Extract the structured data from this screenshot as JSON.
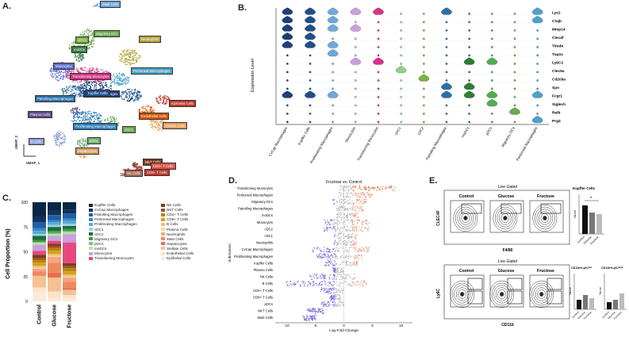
{
  "panels": {
    "a": "A.",
    "b": "B.",
    "c": "C.",
    "d": "D.",
    "e": "E."
  },
  "umap": {
    "axis_x": "UMAP_1",
    "axis_y": "UMAP_2",
    "clusters": [
      {
        "label": "Mast Cells",
        "color": "#6fa8dc"
      },
      {
        "label": "Migratory DCs",
        "color": "#6aa84f"
      },
      {
        "label": "Neutrophils",
        "color": "#b5a642"
      },
      {
        "label": "cDC2",
        "color": "#7cb342"
      },
      {
        "label": "moDCs",
        "color": "#3e7d4a"
      },
      {
        "label": "Transitioning Monocytes",
        "color": "#d63384"
      },
      {
        "label": "Peritoneal Macrophages",
        "color": "#4aa3c8"
      },
      {
        "label": "Monocytes",
        "color": "#5b6ec6"
      },
      {
        "label": "CvCap Macrophages",
        "color": "#1d3f7a"
      },
      {
        "label": "Patrolling Macrophages",
        "color": "#2f6fa8"
      },
      {
        "label": "Epithelial Cells",
        "color": "#c0392b"
      },
      {
        "label": "Plasma Cells",
        "color": "#5e4d8a"
      },
      {
        "label": "Endothelial Cells",
        "color": "#d35400"
      },
      {
        "label": "Proliferating Macrophages",
        "color": "#2c7fb8"
      },
      {
        "label": "cDC1",
        "color": "#6aa84f"
      },
      {
        "label": "Stellate Cells",
        "color": "#e6a15c"
      },
      {
        "label": "B Cells",
        "color": "#8e9fd6"
      },
      {
        "label": "pDCs",
        "color": "#6fb26f"
      },
      {
        "label": "Hepatocytes",
        "color": "#d9a066"
      },
      {
        "label": "NKT Cells",
        "color": "#7a3e1d"
      },
      {
        "label": "CD8+ T Cells",
        "color": "#c0392b"
      },
      {
        "label": "CD4+ T Cells",
        "color": "#d9534f"
      },
      {
        "label": "NK Cells",
        "color": "#a8705a"
      },
      {
        "label": "Kupffer Cells",
        "color": "#1f4e8c"
      }
    ]
  },
  "violin": {
    "ylabel": "Expression Level",
    "genes": [
      "Lyz2",
      "C1qb",
      "Mmp14",
      "Clec4f",
      "Timd4",
      "Top2a",
      "Ly6C2",
      "Clec9a",
      "Cd209a",
      "Spn",
      "Fcgr1",
      "Siglech",
      "Relb",
      "Prg4"
    ],
    "cell_types": [
      "CvCap Macrophages",
      "Kupffer Cells",
      "Proliferating Macrophages",
      "Monocytes",
      "Transitioning Monocytes",
      "cDC1",
      "cDC2",
      "Patrolling Macrophages",
      "moDCs",
      "pDCs",
      "Migratory DCs",
      "Peritoneal Macrophages"
    ],
    "colors": [
      "#1d3f7a",
      "#1f4e8c",
      "#6fa8dc",
      "#c9a0dc",
      "#d63384",
      "#8fcf8f",
      "#7cb342",
      "#2f6fa8",
      "#2e7d32",
      "#4caf50",
      "#6aa84f",
      "#4aa3c8"
    ]
  },
  "stacked": {
    "ylabel": "Cell Proportion (%)",
    "groups": [
      "Control",
      "Glucose",
      "Fructose"
    ],
    "ticks": [
      "0",
      "25",
      "50",
      "75",
      "100"
    ],
    "legend_col1": [
      "Kupffer Cells",
      "CvCap Macrophages",
      "Patrolling Macrophages",
      "Peritoneal Macrophages",
      "Proliferating Macrophages",
      "cDC1",
      "cDC2",
      "Migratory DCs",
      "pDCs",
      "moDCs",
      "Monocytes",
      "Transitioning Monocytes"
    ],
    "legend_col2": [
      "NK Cells",
      "NKT Cells",
      "CD4+ T Cells",
      "CD8+ T Cells",
      "B Cells",
      "Plasma Cells",
      "Neutrophils",
      "Mast Cells",
      "Hepatocytes",
      "Stellate Cells",
      "Endothelial Cells",
      "Epithelial Cells"
    ],
    "colors_col1": [
      "#0b2545",
      "#13315c",
      "#1d5fa6",
      "#3a87c8",
      "#5aa8d8",
      "#9fd1e8",
      "#1e6b3a",
      "#3f9a4a",
      "#7cc47c",
      "#b8e0a8",
      "#c9a0dc",
      "#e64980"
    ],
    "colors_col2": [
      "#7a3e1d",
      "#a0522d",
      "#b8860b",
      "#d4a017",
      "#e8c07a",
      "#f1d9a8",
      "#f4a582",
      "#f08a5d",
      "#e76f51",
      "#f4c095",
      "#fbe3c8",
      "#fde9d9"
    ]
  },
  "beeswarm": {
    "title": "Fructose vs. Control",
    "ylabel": "Subclusters",
    "xlabel": "Log Fold Change",
    "xticks": [
      "-10",
      "-5",
      "0",
      "5",
      "10"
    ],
    "rows": [
      "Transitioning Monocytes",
      "Peritoneal Macrophages",
      "Migratory DCs",
      "Patrolling Macrophages",
      "moDCs",
      "Monocytes",
      "cDC2",
      "cDC1",
      "Neutrophils",
      "CvCap Macrophages",
      "Proliferating Macrophages",
      "Kupffer Cells",
      "Plasma Cells",
      "NK Cells",
      "B Cells",
      "CD4+ T Cells",
      "CD8+ T Cells",
      "pDCs",
      "NKT Cells",
      "Mast Cells"
    ]
  },
  "flow": {
    "top_title": "Live Gated",
    "top_groups": [
      "Control",
      "Glucose",
      "Fructose"
    ],
    "top_ylabel": "CLEC4F",
    "top_xlabel": "F4/80",
    "kupffer_title": "Kupffer Cells",
    "bottom_title": "Live Gated",
    "bottom_groups": [
      "Control",
      "Glucose",
      "Fructose"
    ],
    "bottom_ylabel": "Ly6C",
    "bottom_xlabel": "CD11b",
    "bar_title_1": "CD11b+Ly6C",
    "bar_title_1_sup": "low",
    "bar_title_2": "CD11b+Ly6C",
    "bar_title_2_sup": "high",
    "bar_ylabel": "%Live",
    "bar_x": [
      "Control",
      "Glucose",
      "Fructose"
    ],
    "sig": "*"
  }
}
